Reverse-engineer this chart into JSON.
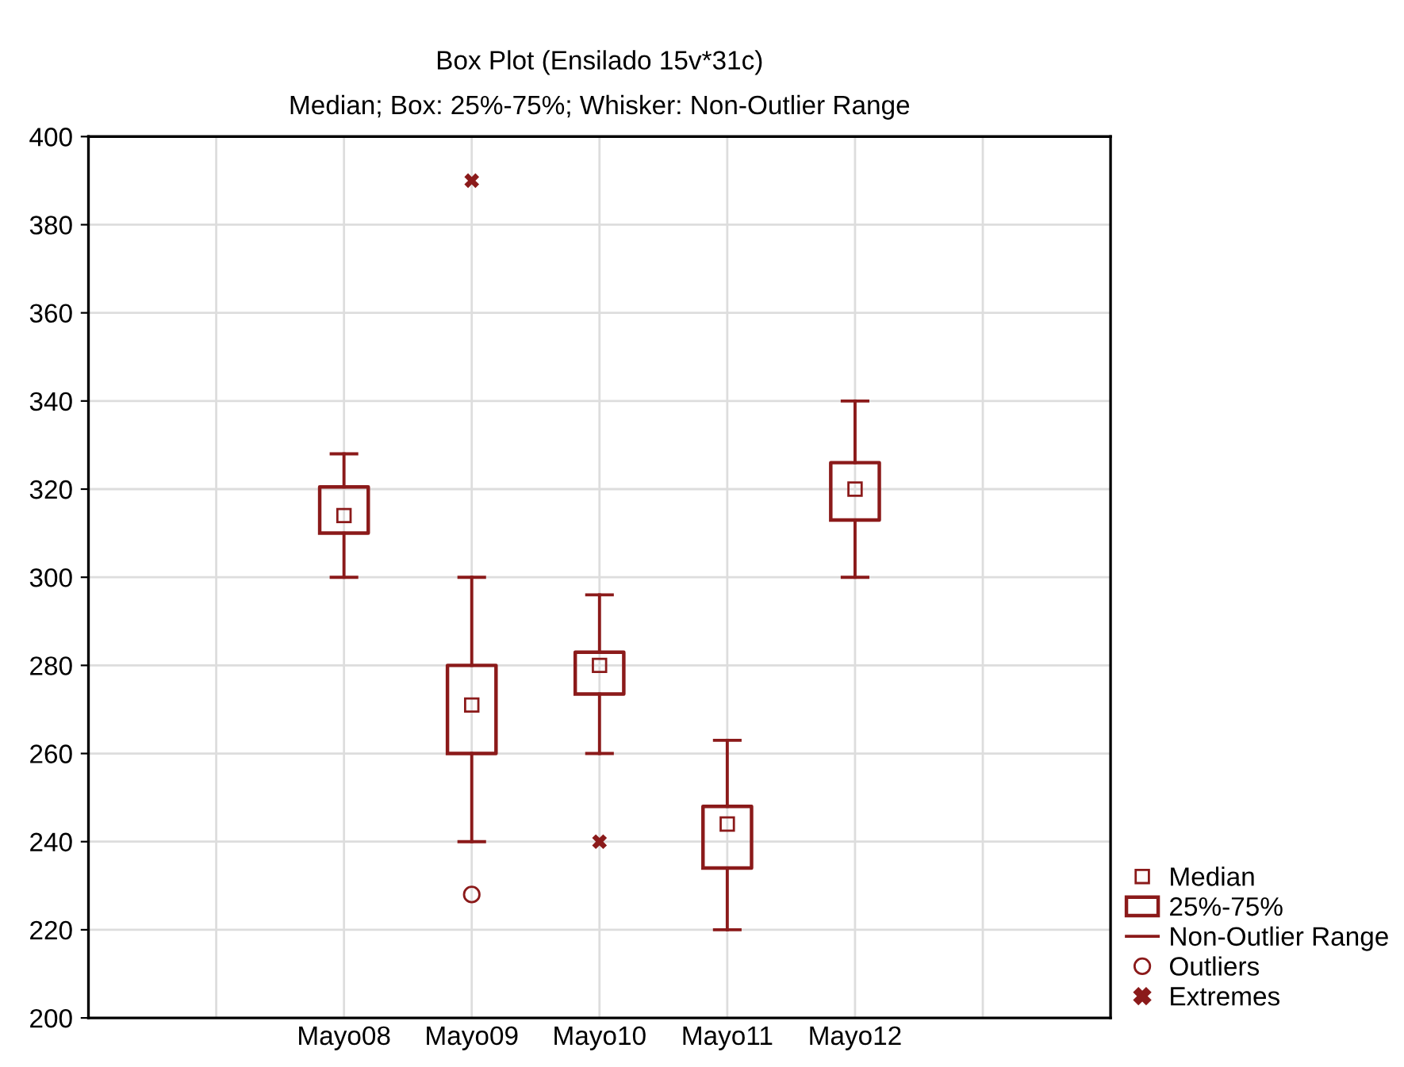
{
  "chart_data": {
    "type": "box",
    "title": "Box Plot (Ensilado 15v*31c)",
    "subtitle": "Median; Box: 25%-75%; Whisker: Non-Outlier Range",
    "categories": [
      null,
      "Mayo08",
      "Mayo09",
      "Mayo10",
      "Mayo11",
      "Mayo12",
      null
    ],
    "color": "#8b1a1a",
    "boxes": [
      null,
      {
        "low": 300,
        "q1": 310,
        "median": 314,
        "q3": 320.5,
        "high": 328
      },
      {
        "low": 240,
        "q1": 260,
        "median": 271,
        "q3": 280,
        "high": 300,
        "outliers": [
          228
        ]
      },
      {
        "low": 260,
        "q1": 273.5,
        "median": 280,
        "q3": 283,
        "high": 296
      },
      {
        "low": 220,
        "q1": 234,
        "median": 244,
        "q3": 248,
        "high": 263
      },
      {
        "low": 300,
        "q1": 313,
        "median": 320,
        "q3": 326,
        "high": 340
      },
      null
    ],
    "series": [
      {
        "type": "scatter",
        "name": "Extremes",
        "color": "#8b1a1a",
        "marker": "cross",
        "x": [
          "Mayo09",
          "Mayo10"
        ],
        "values": [
          390,
          240
        ]
      }
    ],
    "annotations": [
      "Median",
      "25%-75%",
      "Non-Outlier Range",
      "Outliers"
    ],
    "ylim": [
      200,
      400
    ],
    "yticks": [
      200,
      220,
      240,
      260,
      280,
      300,
      320,
      340,
      360,
      380,
      400
    ],
    "grid": true,
    "legend": "bottom right"
  }
}
